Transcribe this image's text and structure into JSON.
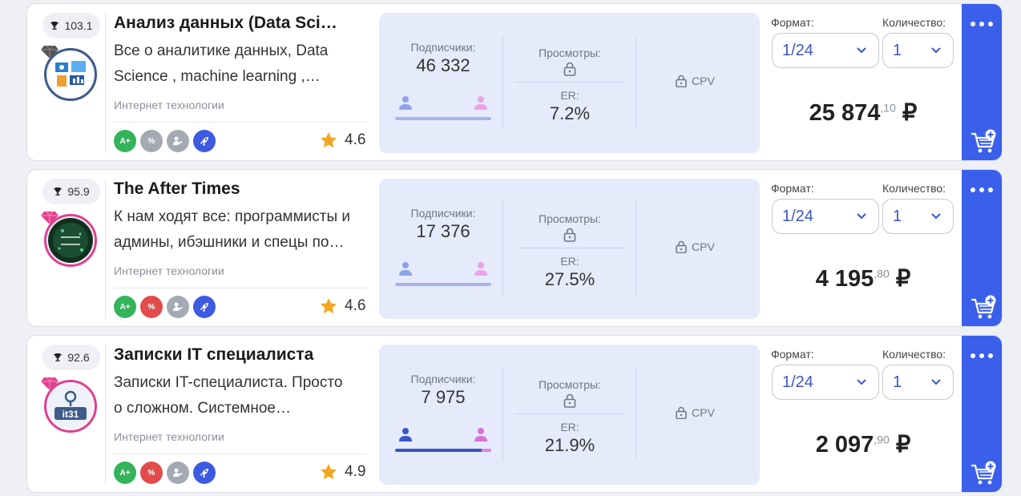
{
  "cards": [
    {
      "rank": "103.1",
      "title": "Анализ данных (Data Science)",
      "description": "Все о аналитике данных, Data Science , machine learning , искусственном интеллекте",
      "category": "Интернет технологии",
      "badges": [
        "A+",
        "%"
      ],
      "rating": "4.6",
      "subscribers_label": "Подписчики:",
      "subscribers": "46 332",
      "male_ratio": 1.0,
      "views_label": "Просмотры:",
      "er_label": "ER:",
      "er": "7.2%",
      "cpv_label": "CPV",
      "format_label": "Формат:",
      "format_value": "1/24",
      "quantity_label": "Количество:",
      "quantity_value": "1",
      "price_main": "25 874",
      "price_cents": ",10",
      "currency": "₽"
    },
    {
      "rank": "95.9",
      "title": "The After Times",
      "description": "К нам ходят все: программисты и админы, ибэшники и спецы по кибербезопасности",
      "category": "Интернет технологии",
      "badges": [
        "A+",
        "%"
      ],
      "rating": "4.6",
      "subscribers_label": "Подписчики:",
      "subscribers": "17 376",
      "male_ratio": 1.0,
      "views_label": "Просмотры:",
      "er_label": "ER:",
      "er": "27.5%",
      "cpv_label": "CPV",
      "format_label": "Формат:",
      "format_value": "1/24",
      "quantity_label": "Количество:",
      "quantity_value": "1",
      "price_main": "4 195",
      "price_cents": ",80",
      "currency": "₽"
    },
    {
      "rank": "92.6",
      "title": "Записки IT специалиста",
      "description": "Записки IT-специалиста. Просто о сложном. Системное администрирование",
      "category": "Интернет технологии",
      "badges": [
        "A+",
        "%"
      ],
      "rating": "4.9",
      "subscribers_label": "Подписчики:",
      "subscribers": "7 975",
      "male_ratio": 0.9,
      "views_label": "Просмотры:",
      "er_label": "ER:",
      "er": "21.9%",
      "cpv_label": "CPV",
      "format_label": "Формат:",
      "format_value": "1/24",
      "quantity_label": "Количество:",
      "quantity_value": "1",
      "price_main": "2 097",
      "price_cents": ",90",
      "currency": "₽"
    }
  ],
  "avatars": [
    "it31"
  ],
  "colors": {
    "accent": "#3a5fea",
    "stats_bg": "#e5ebfb",
    "link": "#3d55c8",
    "star": "#f4a623"
  },
  "icons": [
    "trophy-icon",
    "diamond-icon",
    "star-icon",
    "lock-icon",
    "male-icon",
    "female-icon",
    "chevron-down-icon",
    "more-icon",
    "add-to-cart-icon",
    "rocket-icon",
    "handshake-icon"
  ]
}
